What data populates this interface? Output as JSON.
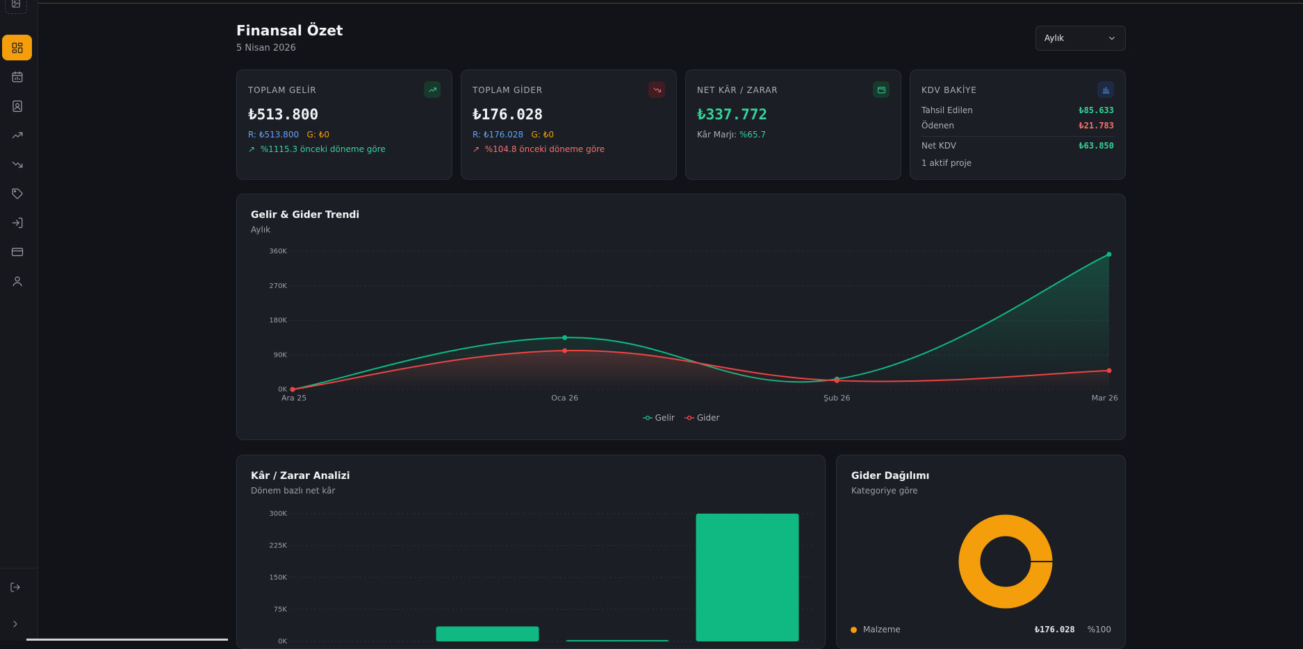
{
  "header": {
    "title": "Finansal Özet",
    "date": "5 Nisan 2026",
    "period_selected": "Aylık"
  },
  "sidebar": {
    "items": [
      {
        "icon": "dashboard-icon",
        "active": true
      },
      {
        "icon": "calendar-chart-icon"
      },
      {
        "icon": "contacts-book-icon"
      },
      {
        "icon": "trending-up-icon"
      },
      {
        "icon": "trending-down-icon"
      },
      {
        "icon": "tag-icon"
      },
      {
        "icon": "sign-in-icon"
      },
      {
        "icon": "credit-card-icon"
      },
      {
        "icon": "user-icon"
      }
    ],
    "bottom": [
      {
        "icon": "logout-icon"
      },
      {
        "icon": "chevron-right-icon"
      }
    ]
  },
  "kpis": {
    "income": {
      "label": "TOPLAM GELİR",
      "value": "₺513.800",
      "r": "R: ₺513.800",
      "g": "G: ₺0",
      "trend": "%1115.3 önceki döneme göre",
      "color": "#34d399"
    },
    "expense": {
      "label": "TOPLAM GİDER",
      "value": "₺176.028",
      "r": "R: ₺176.028",
      "g": "G: ₺0",
      "trend": "%104.8 önceki döneme göre",
      "color": "#f87171"
    },
    "net": {
      "label": "NET KÂR / ZARAR",
      "value": "₺337.772",
      "margin_label": "Kâr Marjı:",
      "margin_value": "%65.7"
    },
    "kdv": {
      "label": "KDV BAKİYE",
      "collected_label": "Tahsil Edilen",
      "collected_value": "₺85.633",
      "paid_label": "Ödenen",
      "paid_value": "₺21.783",
      "net_label": "Net KDV",
      "net_value": "₺63.850",
      "projects": "1 aktif proje"
    }
  },
  "trend_section": {
    "title": "Gelir & Gider Trendi",
    "subtitle": "Aylık"
  },
  "profit_section": {
    "title": "Kâr / Zarar Analizi",
    "subtitle": "Dönem bazlı net kâr"
  },
  "expense_dist": {
    "title": "Gider Dağılımı",
    "subtitle": "Kategoriye göre",
    "legend_label": "Malzeme",
    "legend_value": "₺176.028",
    "legend_pct": "%100"
  },
  "chart_data": [
    {
      "type": "area",
      "categories": [
        "Ara 25",
        "Oca 26",
        "Şub 26",
        "Mar 26"
      ],
      "series": [
        {
          "name": "Gelir",
          "values": [
            0,
            135000,
            27000,
            352000
          ],
          "color": "#10b981"
        },
        {
          "name": "Gider",
          "values": [
            0,
            101000,
            23000,
            49000
          ],
          "color": "#ef4444"
        }
      ],
      "y_ticks": [
        "0K",
        "90K",
        "180K",
        "270K",
        "360K"
      ],
      "ylim": [
        0,
        360000
      ],
      "grid": true,
      "legend": "bottom-center"
    },
    {
      "type": "bar",
      "values": [
        0,
        35000,
        3000,
        300000
      ],
      "y_ticks": [
        "0K",
        "75K",
        "150K",
        "225K",
        "300K"
      ],
      "ylim": [
        0,
        300000
      ],
      "color": "#10b981",
      "grid": true
    },
    {
      "type": "pie",
      "labels": [
        "Malzeme"
      ],
      "values": [
        176028
      ],
      "percentages": [
        100
      ],
      "color": "#f59e0b"
    }
  ]
}
